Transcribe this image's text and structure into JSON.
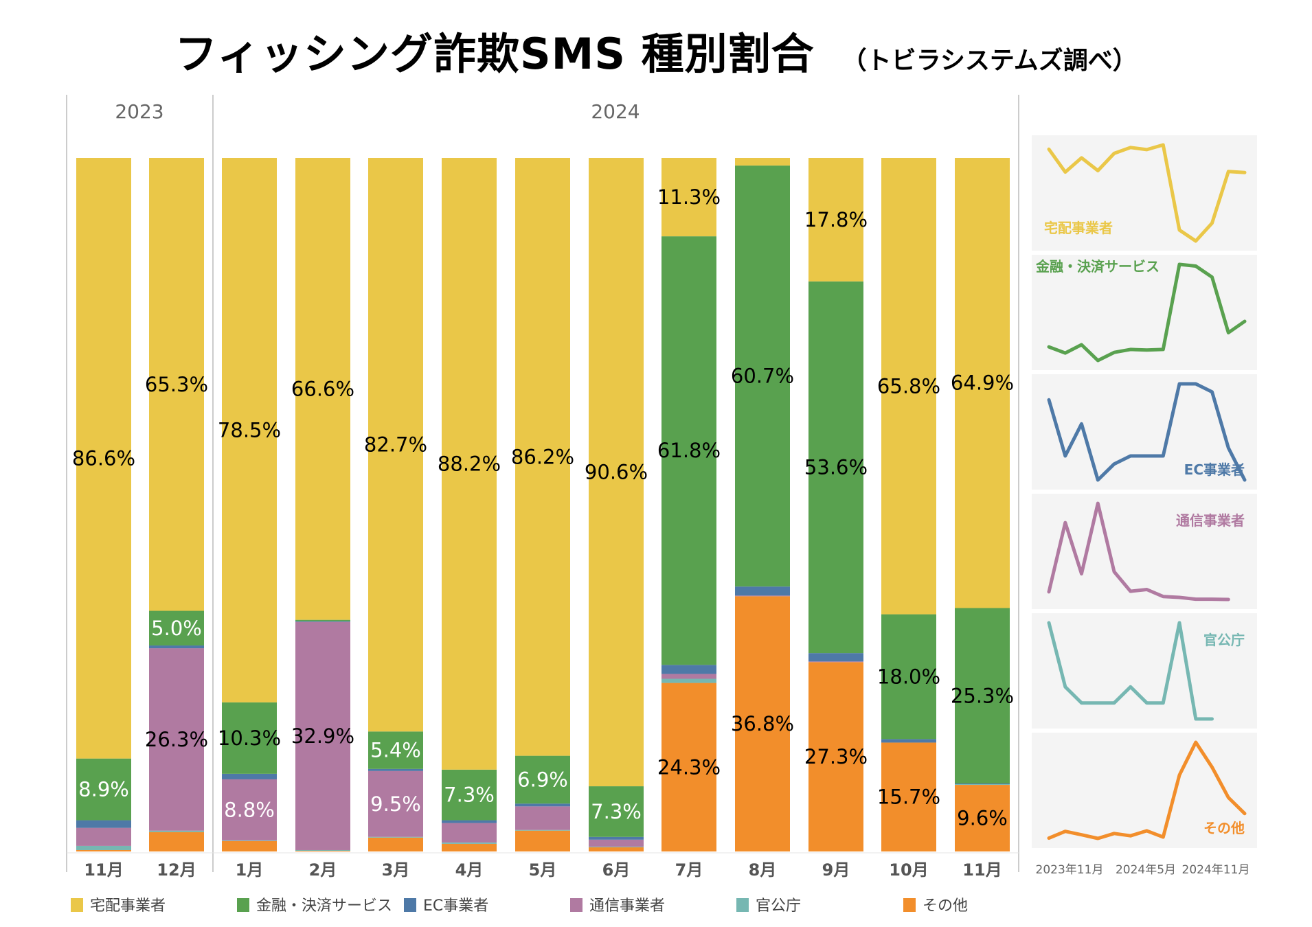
{
  "title": {
    "main": "フィッシング詐欺SMS 種別割合",
    "sub": "（トビラシステムズ調べ）"
  },
  "chart_data": {
    "type": "bar",
    "stacked": "percent",
    "title": "フィッシング詐欺SMS 種別割合",
    "subtitle": "（トビラシステムズ調べ）",
    "year_groups": [
      {
        "label": "2023",
        "months": [
          "11月",
          "12月"
        ]
      },
      {
        "label": "2024",
        "months": [
          "1月",
          "2月",
          "3月",
          "4月",
          "5月",
          "6月",
          "7月",
          "8月",
          "9月",
          "10月",
          "11月"
        ]
      }
    ],
    "categories": [
      "2023年11月",
      "2023年12月",
      "2024年1月",
      "2024年2月",
      "2024年3月",
      "2024年4月",
      "2024年5月",
      "2024年6月",
      "2024年7月",
      "2024年8月",
      "2024年9月",
      "2024年10月",
      "2024年11月"
    ],
    "xlabels": [
      "11月",
      "12月",
      "1月",
      "2月",
      "3月",
      "4月",
      "5月",
      "6月",
      "7月",
      "8月",
      "9月",
      "10月",
      "11月"
    ],
    "ylim": [
      0,
      100
    ],
    "legend_position": "bottom",
    "series": [
      {
        "name": "宅配事業者",
        "color": "#EAC748",
        "values": [
          86.6,
          65.3,
          78.5,
          66.6,
          82.7,
          88.2,
          86.2,
          90.6,
          11.3,
          1.1,
          17.8,
          65.8,
          64.9
        ]
      },
      {
        "name": "金融・決済サービス",
        "color": "#59A14F",
        "values": [
          8.9,
          5.0,
          10.3,
          0.2,
          5.4,
          7.3,
          6.9,
          7.3,
          61.8,
          60.7,
          53.6,
          18.0,
          25.3
        ]
      },
      {
        "name": "EC事業者",
        "color": "#4E79A7",
        "values": [
          1.1,
          0.4,
          0.8,
          0.1,
          0.3,
          0.4,
          0.4,
          0.4,
          1.3,
          1.3,
          1.2,
          0.5,
          0.1
        ]
      },
      {
        "name": "通信事業者",
        "color": "#B07AA1",
        "values": [
          2.6,
          26.3,
          8.8,
          32.9,
          9.5,
          2.8,
          3.4,
          1.0,
          0.7,
          0.1,
          0.1,
          0.0,
          0.0
        ]
      },
      {
        "name": "官公庁",
        "color": "#76B7B2",
        "values": [
          0.6,
          0.2,
          0.1,
          0.1,
          0.1,
          0.2,
          0.1,
          0.1,
          0.6,
          0.0,
          0.0,
          0.0,
          0.1
        ]
      },
      {
        "name": "その他",
        "color": "#F28E2B",
        "values": [
          0.2,
          2.8,
          1.5,
          0.1,
          2.0,
          1.1,
          3.0,
          0.6,
          24.3,
          36.8,
          27.3,
          15.7,
          9.6
        ]
      }
    ],
    "data_labels": [
      {
        "bar": 0,
        "series": 0,
        "text": "86.6%",
        "color": "#000"
      },
      {
        "bar": 0,
        "series": 1,
        "text": "8.9%",
        "color": "#fff"
      },
      {
        "bar": 1,
        "series": 0,
        "text": "65.3%",
        "color": "#000"
      },
      {
        "bar": 1,
        "series": 1,
        "text": "5.0%",
        "color": "#fff"
      },
      {
        "bar": 1,
        "series": 3,
        "text": "26.3%",
        "color": "#000"
      },
      {
        "bar": 2,
        "series": 0,
        "text": "78.5%",
        "color": "#000"
      },
      {
        "bar": 2,
        "series": 1,
        "text": "10.3%",
        "color": "#000"
      },
      {
        "bar": 2,
        "series": 3,
        "text": "8.8%",
        "color": "#fff"
      },
      {
        "bar": 3,
        "series": 0,
        "text": "66.6%",
        "color": "#000"
      },
      {
        "bar": 3,
        "series": 3,
        "text": "32.9%",
        "color": "#000"
      },
      {
        "bar": 4,
        "series": 0,
        "text": "82.7%",
        "color": "#000"
      },
      {
        "bar": 4,
        "series": 1,
        "text": "5.4%",
        "color": "#fff"
      },
      {
        "bar": 4,
        "series": 3,
        "text": "9.5%",
        "color": "#fff"
      },
      {
        "bar": 5,
        "series": 0,
        "text": "88.2%",
        "color": "#000"
      },
      {
        "bar": 5,
        "series": 1,
        "text": "7.3%",
        "color": "#fff"
      },
      {
        "bar": 6,
        "series": 0,
        "text": "86.2%",
        "color": "#000"
      },
      {
        "bar": 6,
        "series": 1,
        "text": "6.9%",
        "color": "#fff"
      },
      {
        "bar": 7,
        "series": 0,
        "text": "90.6%",
        "color": "#000"
      },
      {
        "bar": 7,
        "series": 1,
        "text": "7.3%",
        "color": "#fff"
      },
      {
        "bar": 8,
        "series": 0,
        "text": "11.3%",
        "color": "#000"
      },
      {
        "bar": 8,
        "series": 1,
        "text": "61.8%",
        "color": "#000"
      },
      {
        "bar": 8,
        "series": 5,
        "text": "24.3%",
        "color": "#000"
      },
      {
        "bar": 9,
        "series": 1,
        "text": "60.7%",
        "color": "#000"
      },
      {
        "bar": 9,
        "series": 5,
        "text": "36.8%",
        "color": "#000"
      },
      {
        "bar": 10,
        "series": 0,
        "text": "17.8%",
        "color": "#000"
      },
      {
        "bar": 10,
        "series": 1,
        "text": "53.6%",
        "color": "#000"
      },
      {
        "bar": 10,
        "series": 5,
        "text": "27.3%",
        "color": "#000"
      },
      {
        "bar": 11,
        "series": 0,
        "text": "65.8%",
        "color": "#000"
      },
      {
        "bar": 11,
        "series": 1,
        "text": "18.0%",
        "color": "#000"
      },
      {
        "bar": 11,
        "series": 5,
        "text": "15.7%",
        "color": "#000"
      },
      {
        "bar": 12,
        "series": 0,
        "text": "64.9%",
        "color": "#000"
      },
      {
        "bar": 12,
        "series": 1,
        "text": "25.3%",
        "color": "#000"
      },
      {
        "bar": 12,
        "series": 5,
        "text": "9.6%",
        "color": "#000"
      }
    ],
    "sparklines": {
      "x_ticks": [
        "2023年11月",
        "2024年5月",
        "2024年11月"
      ],
      "panels": [
        {
          "series": 0,
          "label": "宅配事業者",
          "label_pos": "bottom-left"
        },
        {
          "series": 1,
          "label": "金融・決済サービス",
          "label_pos": "top-left"
        },
        {
          "series": 2,
          "label": "EC事業者",
          "label_pos": "bottom-right"
        },
        {
          "series": 3,
          "label": "通信事業者",
          "label_pos": "top-right",
          "points": 12
        },
        {
          "series": 4,
          "label": "官公庁",
          "label_pos": "top-right",
          "points": 11
        },
        {
          "series": 5,
          "label": "その他",
          "label_pos": "bottom-right"
        }
      ]
    }
  }
}
